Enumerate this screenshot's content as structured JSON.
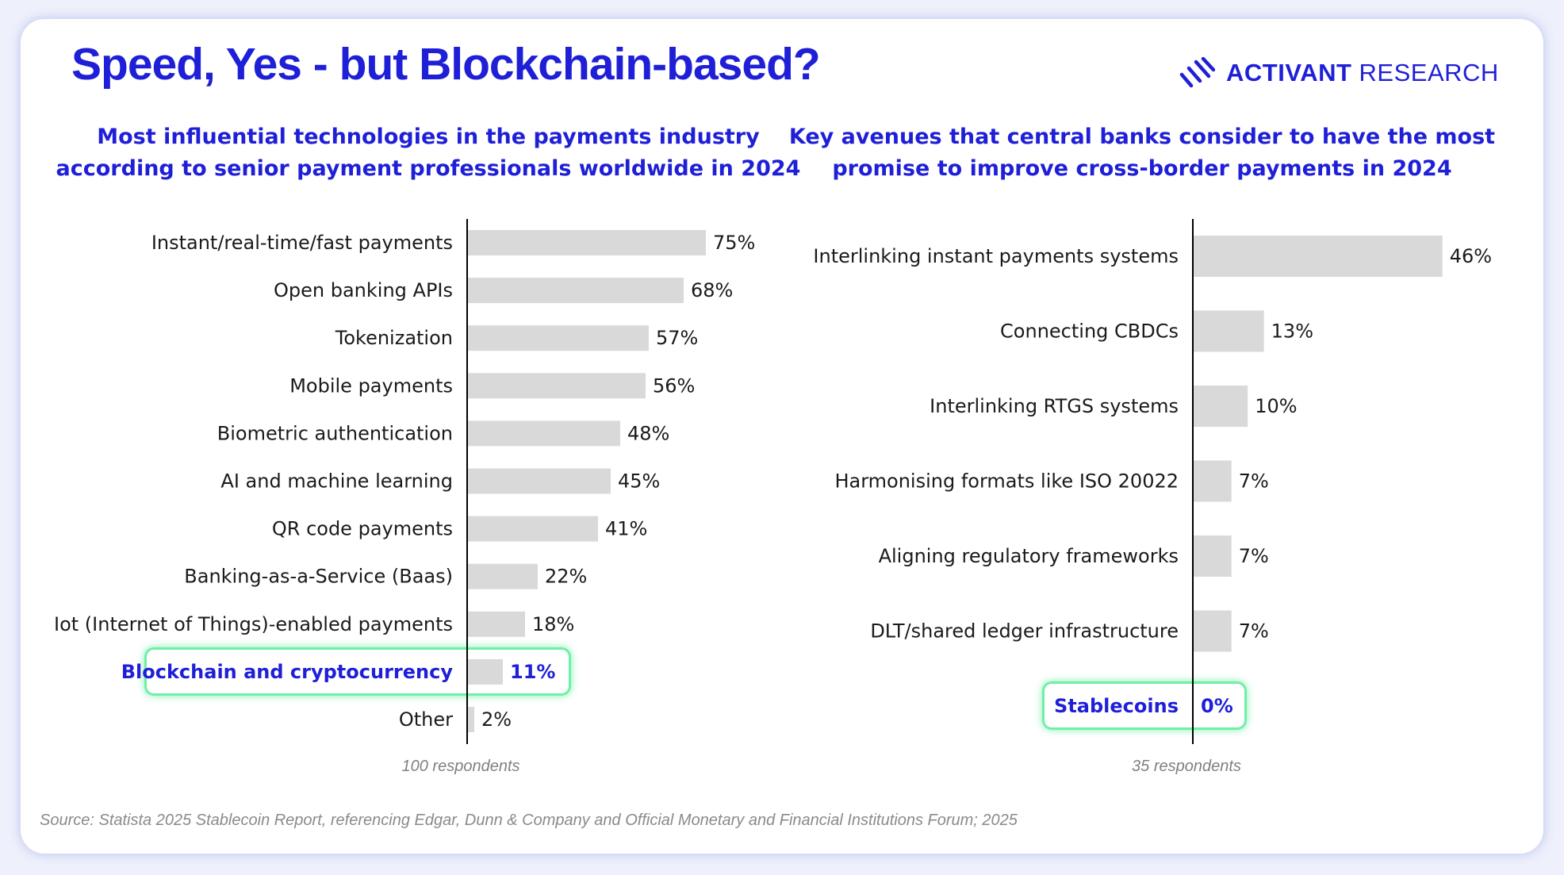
{
  "page": {
    "title": "Speed, Yes - but Blockchain-based?",
    "brand": {
      "bold": "ACTIVANT",
      "rest": " RESEARCH",
      "icon": "activant-logo-mark"
    },
    "source": "Source: Statista 2025 Stablecoin Report, referencing Edgar, Dunn & Company and Official Monetary and Financial Institutions Forum; 2025",
    "colors": {
      "accent": "#1f1fd8",
      "bar": "#d9d9d9",
      "highlight": "#6ef0a6",
      "axis": "#000000"
    }
  },
  "chart_data": [
    {
      "type": "bar",
      "orientation": "horizontal",
      "title": "Most influential technologies in the payments industry according to senior payment professionals worldwide in 2024",
      "categories": [
        "Instant/real-time/fast payments",
        "Open banking APIs",
        "Tokenization",
        "Mobile payments",
        "Biometric authentication",
        "AI and machine learning",
        "QR code payments",
        "Banking-as-a-Service (Baas)",
        "Iot (Internet of Things)-enabled payments",
        "Blockchain and cryptocurrency",
        "Other"
      ],
      "values": [
        75,
        68,
        57,
        56,
        48,
        45,
        41,
        22,
        18,
        11,
        2
      ],
      "value_suffix": "%",
      "highlight_index": 9,
      "xlim": [
        0,
        100
      ],
      "grid": false,
      "note": "100 respondents"
    },
    {
      "type": "bar",
      "orientation": "horizontal",
      "title": "Key avenues that central banks consider to have the most promise to improve cross-border payments in 2024",
      "categories": [
        "Interlinking instant payments systems",
        "Connecting CBDCs",
        "Interlinking RTGS systems",
        "Harmonising formats like ISO 20022",
        "Aligning regulatory frameworks",
        "DLT/shared ledger infrastructure",
        "Stablecoins"
      ],
      "values": [
        46,
        13,
        10,
        7,
        7,
        7,
        0
      ],
      "value_suffix": "%",
      "highlight_index": 6,
      "xlim": [
        0,
        50
      ],
      "grid": false,
      "note": "35 respondents"
    }
  ]
}
